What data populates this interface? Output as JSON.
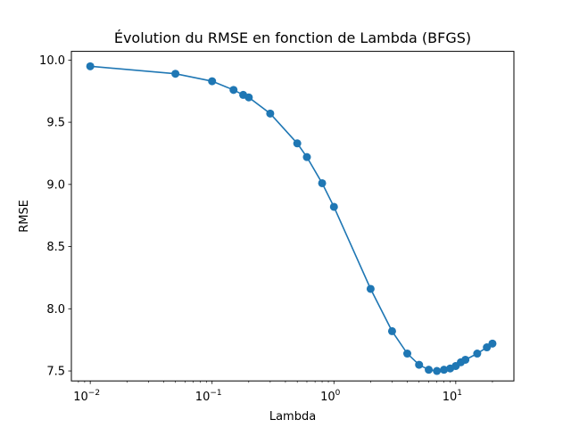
{
  "chart_data": {
    "type": "line",
    "title": "Évolution du RMSE en fonction de Lambda (BFGS)",
    "xlabel": "Lambda",
    "ylabel": "RMSE",
    "xscale": "log",
    "xlim": [
      0.007,
      30
    ],
    "ylim": [
      7.42,
      10.07
    ],
    "grid": false,
    "marker": "circle",
    "color": "#1f77b4",
    "x_ticks": [
      {
        "value": 0.01,
        "base": "10",
        "exp": "−2"
      },
      {
        "value": 0.1,
        "base": "10",
        "exp": "−1"
      },
      {
        "value": 1,
        "base": "10",
        "exp": "0"
      },
      {
        "value": 10,
        "base": "10",
        "exp": "1"
      }
    ],
    "y_ticks": [
      {
        "value": 7.5,
        "label": "7.5"
      },
      {
        "value": 8.0,
        "label": "8.0"
      },
      {
        "value": 8.5,
        "label": "8.5"
      },
      {
        "value": 9.0,
        "label": "9.0"
      },
      {
        "value": 9.5,
        "label": "9.5"
      },
      {
        "value": 10.0,
        "label": "10.0"
      }
    ],
    "series": [
      {
        "x": [
          0.01,
          0.05,
          0.1,
          0.15,
          0.18,
          0.2,
          0.3,
          0.5,
          0.6,
          0.8,
          1,
          2,
          3,
          4,
          5,
          6,
          7,
          8,
          9,
          10,
          11,
          12,
          15,
          18,
          20
        ],
        "y": [
          9.95,
          9.89,
          9.83,
          9.76,
          9.72,
          9.7,
          9.57,
          9.33,
          9.22,
          9.01,
          8.82,
          8.16,
          7.82,
          7.64,
          7.55,
          7.51,
          7.5,
          7.51,
          7.52,
          7.54,
          7.57,
          7.59,
          7.64,
          7.69,
          7.72
        ]
      }
    ]
  }
}
